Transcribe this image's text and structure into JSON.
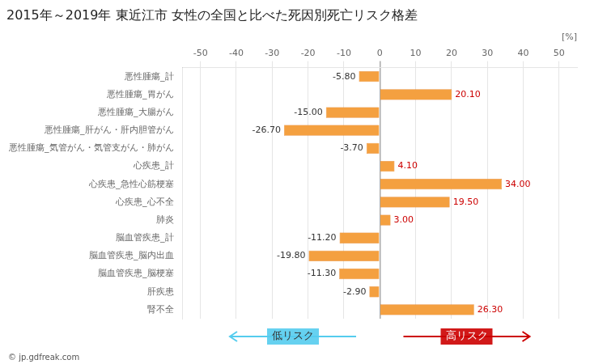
{
  "chart_data": {
    "type": "bar",
    "orientation": "horizontal",
    "title": "2015年～2019年 東近江市 女性の全国と比べた死因別死亡リスク格差",
    "xlabel": "[%]",
    "categories": [
      "悪性腫瘍_計",
      "悪性腫瘍_胃がん",
      "悪性腫瘍_大腸がん",
      "悪性腫瘍_肝がん・肝内胆管がん",
      "悪性腫瘍_気管がん・気管支がん・肺がん",
      "心疾患_計",
      "心疾患_急性心筋梗塞",
      "心疾患_心不全",
      "肺炎",
      "脳血管疾患_計",
      "脳血管疾患_脳内出血",
      "脳血管疾患_脳梗塞",
      "肝疾患",
      "腎不全"
    ],
    "values": [
      -5.8,
      20.1,
      -15.0,
      -26.7,
      -3.7,
      4.1,
      34.0,
      19.5,
      3.0,
      -11.2,
      -19.8,
      -11.3,
      -2.9,
      26.3
    ],
    "value_labels": [
      "-5.80",
      "20.10",
      "-15.00",
      "-26.70",
      "-3.70",
      "4.10",
      "34.00",
      "19.50",
      "3.00",
      "-11.20",
      "-19.80",
      "-11.30",
      "-2.90",
      "26.30"
    ],
    "data_labels": true,
    "color": "#F4A040",
    "xlim": [
      -55,
      55
    ],
    "xticks": [
      -50,
      -40,
      -30,
      -20,
      -10,
      0,
      10,
      20,
      30,
      40,
      50
    ],
    "grid": true,
    "annotations": [
      {
        "text": "低リスク",
        "color": "#55CCEE"
      },
      {
        "text": "高リスク",
        "color": "#CC0000"
      },
      {
        "text": "© jp.gdfreak.com"
      }
    ]
  }
}
